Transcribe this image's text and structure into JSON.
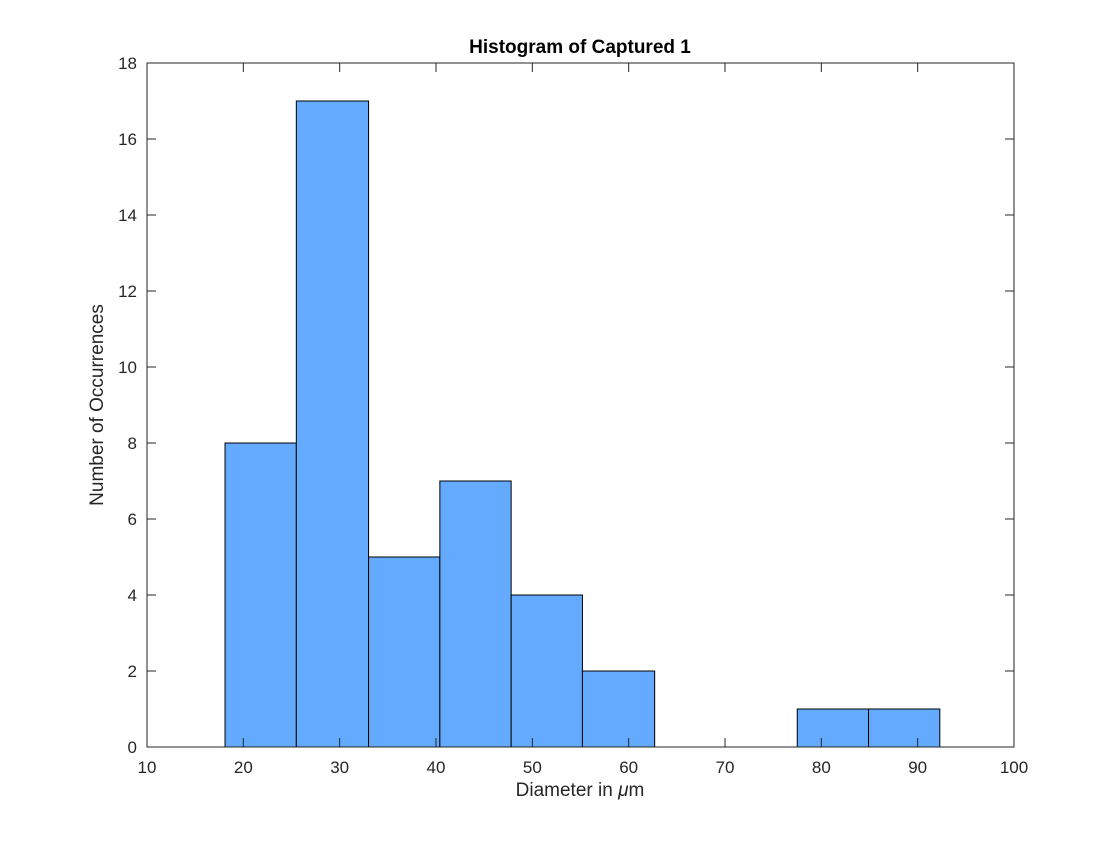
{
  "chart_data": {
    "type": "bar",
    "title": "Histogram of Captured 1",
    "xlabel_prefix": "Diameter in ",
    "xlabel_symbol": "μ",
    "xlabel_suffix": "m",
    "ylabel": "Number of Occurrences",
    "xlim": [
      10,
      100
    ],
    "ylim": [
      0,
      18
    ],
    "xticks": [
      10,
      20,
      30,
      40,
      50,
      60,
      70,
      80,
      90,
      100
    ],
    "yticks": [
      0,
      2,
      4,
      6,
      8,
      10,
      12,
      14,
      16,
      18
    ],
    "bin_edges": [
      18.1,
      25.5,
      33.0,
      40.4,
      47.8,
      55.2,
      62.7,
      70.1,
      77.5,
      84.9,
      92.3
    ],
    "values": [
      8,
      17,
      5,
      7,
      4,
      2,
      0,
      0,
      1,
      1
    ],
    "bar_color": "#64abff",
    "edge_color": "#000000",
    "grid": false,
    "legend": "none"
  }
}
